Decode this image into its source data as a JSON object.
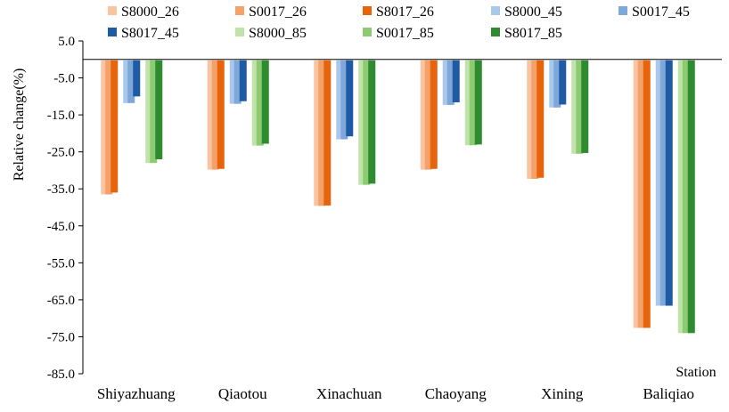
{
  "chart_data": {
    "type": "bar",
    "title": "",
    "xlabel": "Station",
    "ylabel": "Relative change(%)",
    "ylim": [
      -85,
      5
    ],
    "yticks": [
      5,
      -5,
      -15,
      -25,
      -35,
      -45,
      -55,
      -65,
      -75,
      -85
    ],
    "ytick_labels": [
      "5.0",
      "-5.0",
      "-15.0",
      "-25.0",
      "-35.0",
      "-45.0",
      "-55.0",
      "-65.0",
      "-75.0",
      "-85.0"
    ],
    "grid": false,
    "legend_position": "top",
    "categories": [
      "Shiyazhuang",
      "Qiaotou",
      "Xinachuan",
      "Chaoyang",
      "Xining",
      "Baliqiao"
    ],
    "series": [
      {
        "name": "S8000_26",
        "color": "#FBC4A0",
        "values": [
          -36.5,
          -29.8,
          -39.6,
          -29.8,
          -32.3,
          -72.6
        ]
      },
      {
        "name": "S0017_26",
        "color": "#F4A26A",
        "values": [
          -36.5,
          -29.8,
          -39.6,
          -29.8,
          -32.3,
          -72.6
        ]
      },
      {
        "name": "S8017_26",
        "color": "#E8640C",
        "values": [
          -36.0,
          -29.6,
          -39.5,
          -29.6,
          -32.0,
          -72.6
        ]
      },
      {
        "name": "S8000_45",
        "color": "#A9C8EC",
        "values": [
          -11.8,
          -12.0,
          -21.6,
          -12.3,
          -13.0,
          -66.6
        ]
      },
      {
        "name": "S0017_45",
        "color": "#7EA8DA",
        "values": [
          -11.8,
          -12.0,
          -21.6,
          -12.3,
          -13.0,
          -66.6
        ]
      },
      {
        "name": "S8017_45",
        "color": "#1F5AA5",
        "values": [
          -10.0,
          -11.3,
          -20.8,
          -11.6,
          -12.2,
          -66.6
        ]
      },
      {
        "name": "S8000_85",
        "color": "#BFE3A8",
        "values": [
          -28.0,
          -23.3,
          -33.9,
          -23.2,
          -25.5,
          -74.0
        ]
      },
      {
        "name": "S0017_85",
        "color": "#8CCB72",
        "values": [
          -28.0,
          -23.3,
          -33.9,
          -23.2,
          -25.5,
          -74.0
        ]
      },
      {
        "name": "S8017_85",
        "color": "#2E8B30",
        "values": [
          -27.0,
          -22.8,
          -33.6,
          -23.0,
          -25.3,
          -74.0
        ]
      }
    ]
  }
}
